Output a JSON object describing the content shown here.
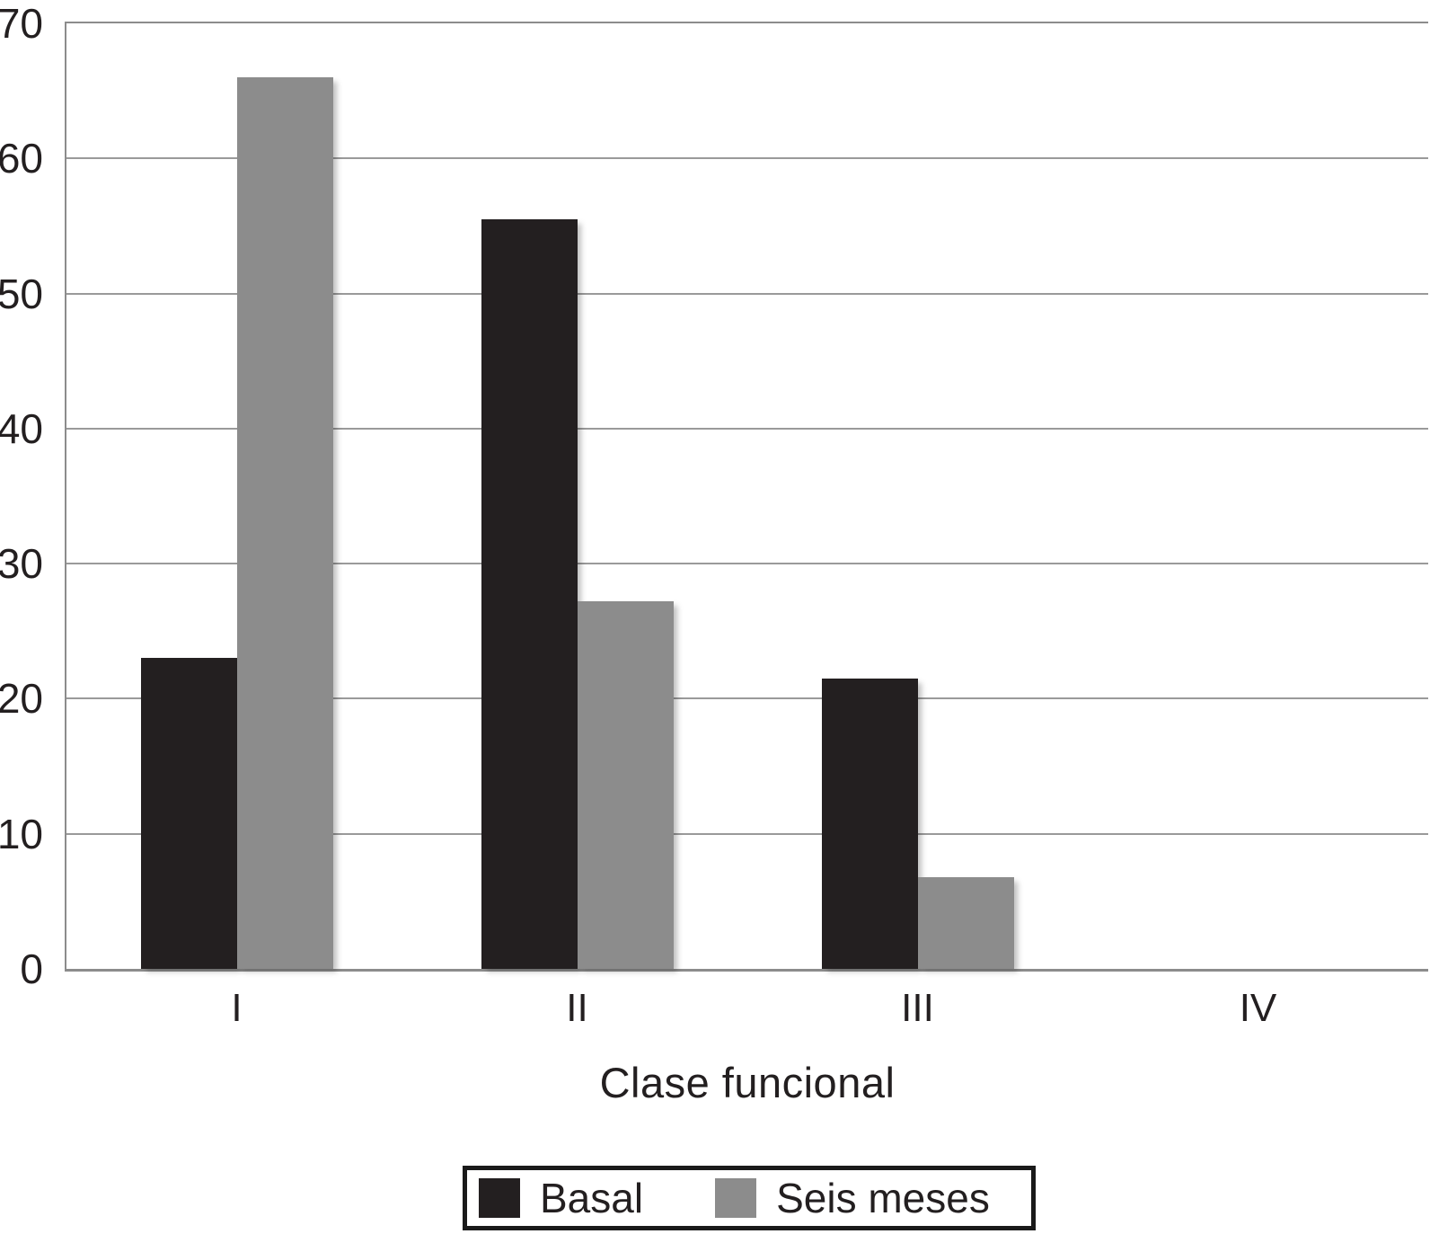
{
  "chart_data": {
    "type": "bar",
    "categories": [
      "I",
      "II",
      "III",
      "IV"
    ],
    "series": [
      {
        "name": "Basal",
        "color": "#231f20",
        "values": [
          23,
          55.5,
          21.5,
          0
        ]
      },
      {
        "name": "Seis meses",
        "color": "#8c8c8c",
        "values": [
          66,
          27.2,
          6.8,
          0
        ]
      }
    ],
    "title": "",
    "xlabel": "Clase funcional",
    "ylabel": "",
    "ylim": [
      0,
      70
    ],
    "yticks": [
      0,
      10,
      20,
      30,
      40,
      50,
      60,
      70
    ],
    "grid": "horizontal",
    "legend_position": "bottom",
    "colors": {
      "gridline": "#9a9a9a",
      "axis_frame": "#8c8c8c",
      "text": "#231f20",
      "legend_border": "#1a1a1a",
      "background": "#ffffff"
    }
  }
}
